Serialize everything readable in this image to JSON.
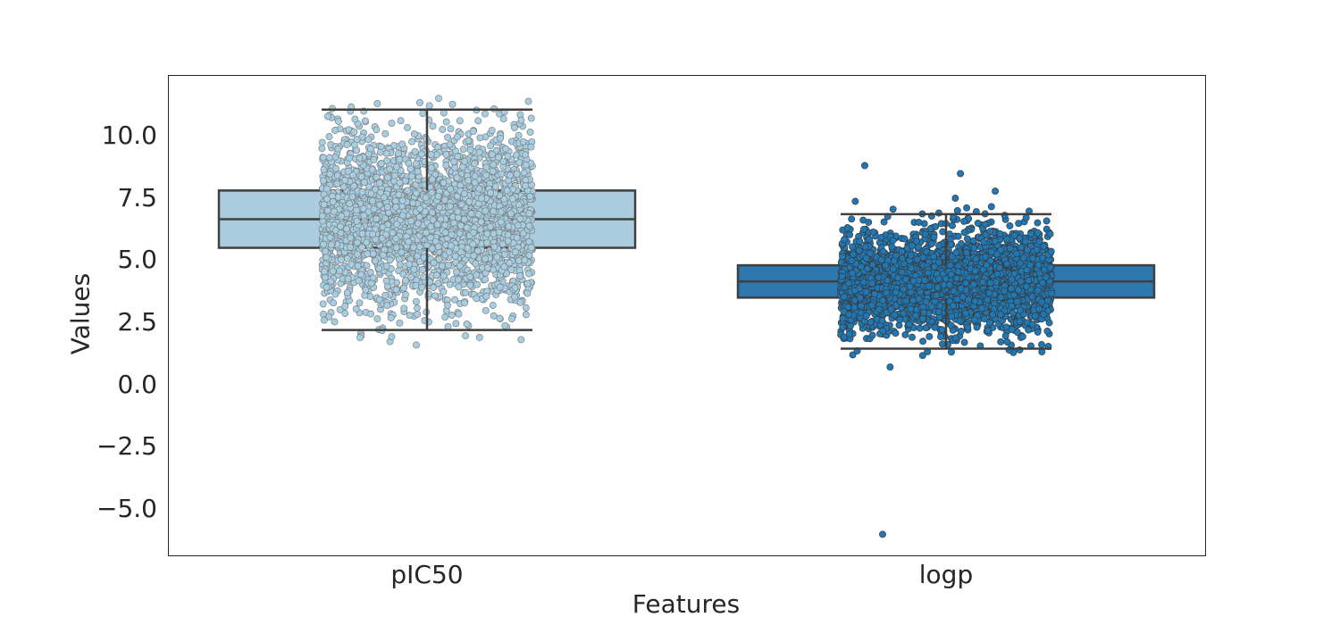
{
  "chart_data": {
    "type": "box",
    "subtype": "boxplot with stripplot overlay",
    "title": "",
    "xlabel": "Features",
    "ylabel": "Values",
    "categories": [
      "pIC50",
      "logp"
    ],
    "ylim": [
      -6.8,
      12.0
    ],
    "yticks": [
      -5.0,
      -2.5,
      0.0,
      2.5,
      5.0,
      7.5,
      10.0
    ],
    "ytick_labels": [
      "−5.0",
      "−2.5",
      "0.0",
      "2.5",
      "5.0",
      "7.5",
      "10.0"
    ],
    "grid": false,
    "legend": null,
    "series": [
      {
        "name": "pIC50",
        "color": "#abcbdf",
        "point_color": "#a6cee3",
        "point_edge": "#7f7f7f",
        "whisker_low": 2.2,
        "q1": 5.5,
        "median": 6.65,
        "q3": 7.8,
        "whisker_high": 11.05,
        "min_outlier": 1.6,
        "max_outlier": 11.5,
        "points_range": [
          1.6,
          11.5
        ]
      },
      {
        "name": "logp",
        "color": "#2d77af",
        "point_color": "#1f78b4",
        "point_edge": "#3a3a3a",
        "whisker_low": 1.45,
        "q1": 3.5,
        "median": 4.15,
        "q3": 4.8,
        "whisker_high": 6.85,
        "min_outlier": -6.0,
        "max_outlier": 8.8,
        "points_range": [
          -6.0,
          8.8
        ]
      }
    ]
  },
  "axes": {
    "xlabel": "Features",
    "ylabel": "Values",
    "xticks": [
      "pIC50",
      "logp"
    ],
    "yticks": [
      "10.0",
      "7.5",
      "5.0",
      "2.5",
      "0.0",
      "−2.5",
      "−5.0"
    ]
  }
}
